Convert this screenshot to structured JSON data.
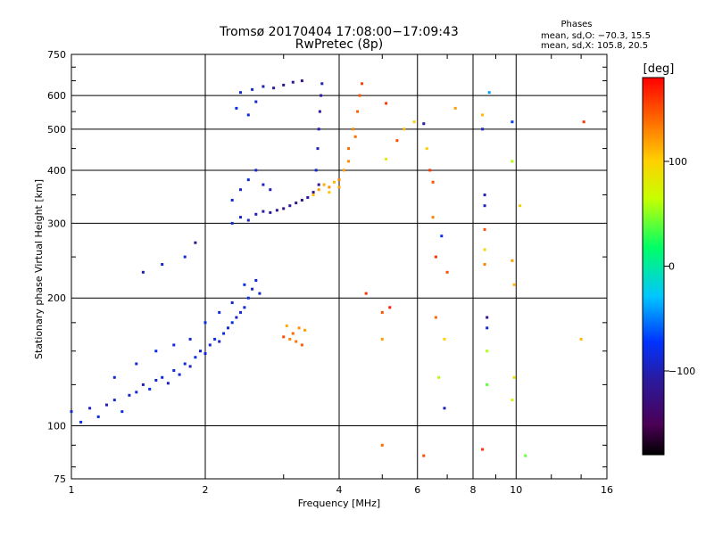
{
  "chart_data": {
    "type": "scatter",
    "title": "Tromsø 20170404 17:08:00−17:09:43",
    "subtitle": "RwPretec (8p)",
    "phases": {
      "heading": "Phases",
      "o_line": "mean, sd,O: −70.3, 15.5",
      "x_line": "mean, sd,X: 105.8, 20.5"
    },
    "xlabel": "Frequency [MHz]",
    "ylabel": "Stationary phase Virtual Height [km]",
    "x_scale": "log",
    "y_scale": "log",
    "xlim": [
      1,
      16
    ],
    "ylim": [
      75,
      750
    ],
    "x_ticks": [
      1,
      2,
      4,
      6,
      8,
      10,
      16
    ],
    "x_tick_labels": [
      "1",
      "2",
      "4",
      "6",
      "8",
      "10",
      "16"
    ],
    "y_ticks": [
      75,
      100,
      200,
      300,
      400,
      500,
      600,
      750
    ],
    "y_tick_labels": [
      "75",
      "100",
      "200",
      "300",
      "400",
      "500",
      "600",
      "750"
    ],
    "grid": true,
    "colorbar": {
      "label": "[deg]",
      "range": [
        -180,
        180
      ],
      "ticks": [
        100,
        0,
        -100
      ],
      "tick_labels": [
        "100",
        "0",
        "−100"
      ]
    },
    "series": [
      {
        "points": [
          [
            1.0,
            108,
            -90
          ],
          [
            1.05,
            102,
            -80
          ],
          [
            1.1,
            110,
            -95
          ],
          [
            1.15,
            105,
            -85
          ],
          [
            1.2,
            112,
            -100
          ],
          [
            1.25,
            115,
            -90
          ],
          [
            1.3,
            108,
            -80
          ],
          [
            1.35,
            118,
            -95
          ],
          [
            1.4,
            120,
            -85
          ],
          [
            1.45,
            125,
            -100
          ],
          [
            1.5,
            122,
            -80
          ],
          [
            1.55,
            128,
            -90
          ],
          [
            1.6,
            130,
            -85
          ],
          [
            1.65,
            126,
            -95
          ],
          [
            1.7,
            135,
            -80
          ],
          [
            1.75,
            132,
            -90
          ],
          [
            1.8,
            140,
            -85
          ],
          [
            1.85,
            138,
            -95
          ],
          [
            1.9,
            145,
            -80
          ],
          [
            1.95,
            150,
            -90
          ],
          [
            2.0,
            148,
            -85
          ],
          [
            2.05,
            155,
            -90
          ],
          [
            2.1,
            160,
            -80
          ],
          [
            2.15,
            158,
            -95
          ],
          [
            2.2,
            165,
            -85
          ],
          [
            2.25,
            170,
            -90
          ],
          [
            2.3,
            175,
            -80
          ],
          [
            2.35,
            180,
            -95
          ],
          [
            2.4,
            185,
            -85
          ],
          [
            2.45,
            190,
            -90
          ],
          [
            2.5,
            200,
            -80
          ],
          [
            2.55,
            210,
            -95
          ],
          [
            2.6,
            220,
            -85
          ],
          [
            2.65,
            205,
            -90
          ],
          [
            1.25,
            130,
            -85
          ],
          [
            1.4,
            140,
            -90
          ],
          [
            1.55,
            150,
            -80
          ],
          [
            1.7,
            155,
            -85
          ],
          [
            1.85,
            160,
            -90
          ],
          [
            2.0,
            175,
            -80
          ],
          [
            2.15,
            185,
            -85
          ],
          [
            2.3,
            195,
            -90
          ],
          [
            2.45,
            215,
            -80
          ],
          [
            1.45,
            230,
            -100
          ],
          [
            1.6,
            240,
            -90
          ],
          [
            1.8,
            250,
            -85
          ],
          [
            1.9,
            270,
            -120
          ],
          [
            2.3,
            300,
            -85
          ],
          [
            2.4,
            310,
            -90
          ],
          [
            2.5,
            305,
            -95
          ],
          [
            2.6,
            315,
            -100
          ],
          [
            2.7,
            320,
            -105
          ],
          [
            2.8,
            318,
            -110
          ],
          [
            2.9,
            322,
            -115
          ],
          [
            3.0,
            325,
            -120
          ],
          [
            3.1,
            330,
            -110
          ],
          [
            3.2,
            335,
            -115
          ],
          [
            3.3,
            340,
            -120
          ],
          [
            3.4,
            345,
            -110
          ],
          [
            3.5,
            355,
            -115
          ],
          [
            3.6,
            370,
            -120
          ],
          [
            2.3,
            340,
            -85
          ],
          [
            2.4,
            360,
            -90
          ],
          [
            2.5,
            380,
            -85
          ],
          [
            2.6,
            400,
            -90
          ],
          [
            2.7,
            370,
            -95
          ],
          [
            2.8,
            360,
            -100
          ],
          [
            3.55,
            400,
            -90
          ],
          [
            3.58,
            450,
            -95
          ],
          [
            3.6,
            500,
            -100
          ],
          [
            3.62,
            550,
            -105
          ],
          [
            3.64,
            600,
            -110
          ],
          [
            3.66,
            640,
            -100
          ],
          [
            2.4,
            610,
            -85
          ],
          [
            2.55,
            620,
            -90
          ],
          [
            2.7,
            630,
            -100
          ],
          [
            2.85,
            625,
            -110
          ],
          [
            3.0,
            635,
            -120
          ],
          [
            3.15,
            645,
            -115
          ],
          [
            3.3,
            650,
            -120
          ],
          [
            2.35,
            560,
            -80
          ],
          [
            2.5,
            540,
            -85
          ],
          [
            2.6,
            580,
            -90
          ]
        ]
      },
      {
        "points": [
          [
            3.1,
            160,
            130
          ],
          [
            3.15,
            165,
            140
          ],
          [
            3.2,
            158,
            135
          ],
          [
            3.25,
            170,
            125
          ],
          [
            3.3,
            155,
            145
          ],
          [
            3.35,
            168,
            120
          ],
          [
            3.0,
            162,
            150
          ],
          [
            3.05,
            172,
            115
          ],
          [
            3.5,
            350,
            110
          ],
          [
            3.6,
            360,
            120
          ],
          [
            3.7,
            370,
            115
          ],
          [
            3.8,
            365,
            125
          ],
          [
            3.9,
            375,
            110
          ],
          [
            4.0,
            380,
            130
          ],
          [
            4.1,
            400,
            120
          ],
          [
            4.2,
            450,
            140
          ],
          [
            4.3,
            500,
            130
          ],
          [
            4.4,
            550,
            145
          ],
          [
            4.45,
            600,
            150
          ],
          [
            4.5,
            640,
            155
          ],
          [
            3.8,
            355,
            105
          ],
          [
            4.0,
            365,
            118
          ],
          [
            4.2,
            420,
            128
          ],
          [
            4.35,
            480,
            138
          ]
        ]
      },
      {
        "points": [
          [
            4.6,
            205,
            160
          ],
          [
            5.0,
            90,
            140
          ],
          [
            5.0,
            185,
            150
          ],
          [
            5.0,
            160,
            120
          ],
          [
            5.1,
            575,
            160
          ],
          [
            5.1,
            425,
            80
          ],
          [
            5.2,
            190,
            170
          ],
          [
            5.4,
            470,
            150
          ],
          [
            5.6,
            500,
            110
          ],
          [
            5.9,
            520,
            100
          ],
          [
            6.2,
            515,
            -110
          ],
          [
            6.3,
            450,
            100
          ],
          [
            6.4,
            400,
            160
          ],
          [
            6.2,
            85,
            150
          ],
          [
            6.5,
            375,
            150
          ],
          [
            6.5,
            310,
            130
          ],
          [
            6.6,
            250,
            160
          ],
          [
            6.6,
            180,
            140
          ],
          [
            6.7,
            130,
            60
          ],
          [
            6.8,
            280,
            -80
          ],
          [
            6.9,
            160,
            100
          ],
          [
            6.9,
            110,
            -100
          ],
          [
            7.0,
            230,
            150
          ],
          [
            7.3,
            560,
            120
          ],
          [
            8.4,
            540,
            110
          ],
          [
            8.4,
            500,
            -90
          ],
          [
            8.5,
            350,
            -100
          ],
          [
            8.5,
            330,
            -95
          ],
          [
            8.5,
            290,
            150
          ],
          [
            8.5,
            260,
            100
          ],
          [
            8.5,
            240,
            130
          ],
          [
            8.6,
            180,
            -120
          ],
          [
            8.6,
            170,
            -90
          ],
          [
            8.6,
            150,
            60
          ],
          [
            8.6,
            125,
            40
          ],
          [
            8.4,
            88,
            160
          ],
          [
            8.7,
            610,
            -40
          ],
          [
            9.8,
            520,
            -70
          ],
          [
            9.8,
            420,
            60
          ],
          [
            9.8,
            245,
            120
          ],
          [
            9.9,
            215,
            110
          ],
          [
            9.9,
            130,
            90
          ],
          [
            9.8,
            115,
            70
          ],
          [
            10.2,
            330,
            100
          ],
          [
            10.5,
            85,
            40
          ],
          [
            14.2,
            520,
            160
          ],
          [
            14.0,
            160,
            110
          ]
        ]
      }
    ]
  }
}
